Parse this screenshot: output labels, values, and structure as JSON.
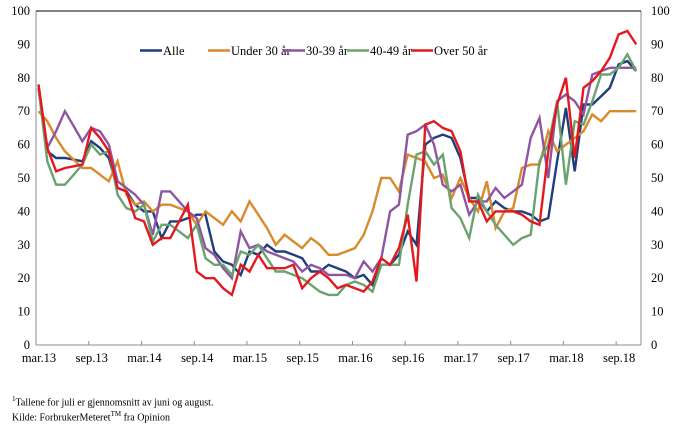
{
  "chart_data": {
    "type": "line",
    "title": "",
    "xlabel": "",
    "ylabel": "",
    "ylim": [
      0,
      100
    ],
    "yticks": [
      0,
      10,
      20,
      30,
      40,
      50,
      60,
      70,
      80,
      90,
      100
    ],
    "y_axis_both_sides": true,
    "grid": false,
    "legend_position": "top-center",
    "x_tick_labels": [
      "mar.13",
      "sep.13",
      "mar.14",
      "sep.14",
      "mar.15",
      "sep.15",
      "mar.16",
      "sep.16",
      "mar.17",
      "sep.17",
      "mar.18",
      "sep.18"
    ],
    "x_start": "mar.13",
    "x_step": "month",
    "series": [
      {
        "name": "Alle",
        "color": "#1f3f7a",
        "values": [
          77,
          58,
          56,
          56,
          55.5,
          55,
          61,
          59,
          56,
          47,
          46,
          42,
          40,
          40,
          32,
          37,
          37,
          38,
          39,
          39,
          28,
          25,
          24,
          21,
          28,
          27,
          30,
          28,
          28,
          27,
          26,
          22,
          22,
          24,
          23,
          22,
          20,
          21,
          18,
          24,
          24,
          27,
          34,
          30,
          60,
          62,
          63,
          62,
          56,
          44,
          44,
          40,
          43,
          41,
          40,
          40,
          39,
          37,
          38,
          55,
          71,
          52,
          72,
          72,
          74.5,
          77,
          84,
          85,
          82
        ]
      },
      {
        "name": "Under 30 år",
        "color": "#d98a2b",
        "values": [
          70,
          67,
          62,
          58,
          55.5,
          53,
          53,
          51,
          49,
          55,
          45,
          42,
          43,
          40,
          42,
          42,
          41,
          40,
          36,
          40,
          38,
          36,
          40,
          37,
          43,
          39,
          35,
          30,
          33,
          31,
          29,
          32,
          30,
          27,
          27,
          28,
          29,
          33,
          40,
          50,
          50,
          46,
          57,
          56,
          55,
          50,
          51,
          44,
          50,
          44,
          40,
          49,
          35,
          40,
          41,
          53,
          54,
          54,
          64,
          58,
          60,
          62,
          64,
          69,
          67,
          70,
          70,
          70,
          70
        ]
      },
      {
        "name": "30-39 år",
        "color": "#9055a2",
        "values": [
          78,
          59,
          64,
          70,
          65.5,
          61,
          65,
          64,
          60,
          49,
          47,
          45,
          42,
          33,
          46,
          46,
          43,
          40,
          38,
          29,
          27,
          23,
          20,
          34,
          29,
          30,
          28,
          27,
          26,
          25,
          22,
          24,
          23,
          21,
          21,
          21,
          20,
          25,
          22,
          26,
          40,
          42,
          63,
          64,
          66,
          60,
          48,
          46,
          48,
          39,
          43,
          43,
          47,
          44,
          46,
          48,
          62,
          68,
          50,
          73,
          75,
          73,
          69,
          81,
          82,
          83,
          83,
          83,
          83
        ]
      },
      {
        "name": "40-49 år",
        "color": "#6aa36f",
        "values": [
          77,
          55,
          48,
          48,
          51,
          54,
          60,
          57,
          58,
          45,
          41,
          40,
          42,
          31,
          36,
          36,
          34,
          32,
          36,
          26,
          24,
          24,
          21,
          28,
          27,
          30,
          26,
          22,
          22,
          21,
          20,
          18,
          16,
          15,
          15,
          18,
          19,
          18,
          16,
          24,
          24,
          24,
          42,
          57,
          58,
          54,
          57,
          41,
          38,
          32,
          45,
          40,
          36,
          33,
          30,
          32,
          33,
          55,
          60,
          73,
          48,
          67,
          66,
          73,
          81,
          81,
          83,
          87,
          82
        ]
      },
      {
        "name": "Over 50 år",
        "color": "#e3191f",
        "values": [
          78,
          59,
          52,
          53,
          53.5,
          54,
          65,
          62,
          58,
          47,
          46,
          38,
          37,
          30,
          32,
          32,
          37,
          42,
          22,
          20,
          20,
          17,
          15,
          24,
          22,
          27,
          23,
          23,
          23,
          24,
          17,
          20,
          22,
          20,
          17,
          18,
          17,
          16,
          19,
          26,
          24,
          29,
          39,
          19,
          66,
          67,
          65,
          64,
          58,
          43,
          43,
          37,
          40,
          40,
          40,
          39,
          37,
          36,
          58,
          72,
          80,
          56,
          77,
          79,
          82,
          86,
          93,
          94,
          90
        ]
      }
    ]
  },
  "footnotes": {
    "note_sup": "1",
    "note_text": "Tallene for juli er gjennomsnitt av juni og august.",
    "source_prefix": "Kilde:  ForbrukerMeteret",
    "source_sup": "TM",
    "source_suffix": " fra Opinion"
  }
}
